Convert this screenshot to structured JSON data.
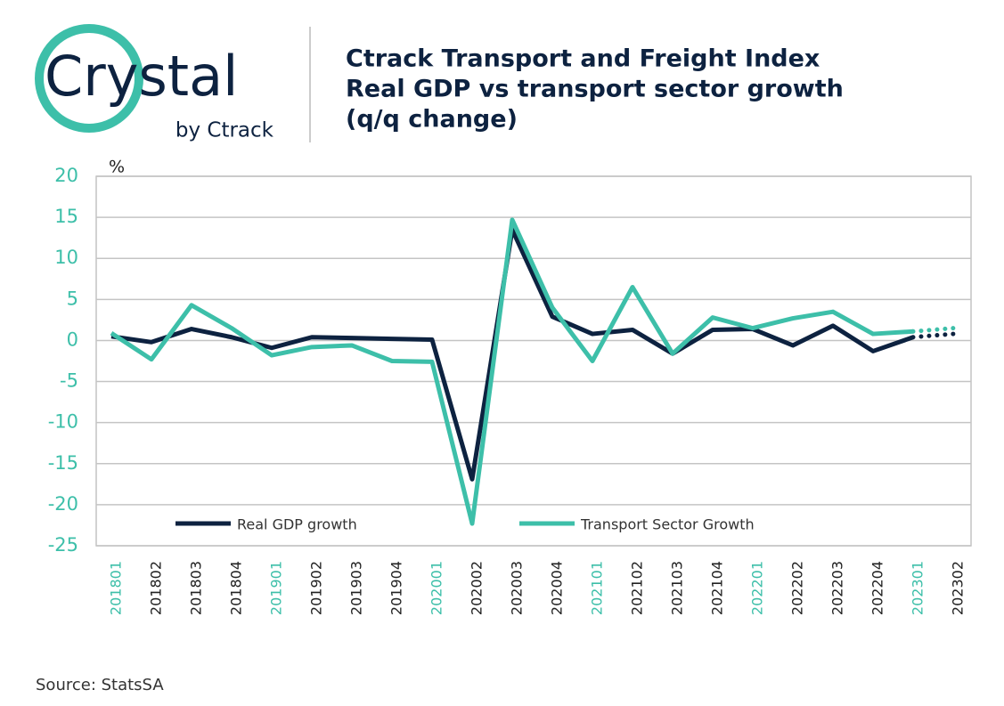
{
  "logo": {
    "name": "Crystal",
    "byline": "by Ctrack"
  },
  "chart_data": {
    "type": "line",
    "title": [
      "Ctrack Transport and Freight Index",
      "Real GDP vs transport sector growth",
      "(q/q change)"
    ],
    "y_unit": "%",
    "categories": [
      "201801",
      "201802",
      "201803",
      "201804",
      "201901",
      "201902",
      "201903",
      "201904",
      "202001",
      "202002",
      "202003",
      "202004",
      "202101",
      "202102",
      "202103",
      "202104",
      "202201",
      "202202",
      "202203",
      "202204",
      "202301",
      "202302"
    ],
    "series": [
      {
        "name": "Real GDP growth",
        "color": "#0d2240",
        "values": [
          0.5,
          -0.2,
          1.4,
          0.4,
          -0.9,
          0.4,
          0.3,
          0.2,
          0.1,
          -16.9,
          13.5,
          2.9,
          0.8,
          1.3,
          -1.6,
          1.3,
          1.4,
          -0.6,
          1.8,
          -1.3,
          0.4,
          0.8
        ]
      },
      {
        "name": "Transport Sector Growth",
        "color": "#3dbfa9",
        "values": [
          0.9,
          -2.3,
          4.3,
          1.5,
          -1.8,
          -0.8,
          -0.6,
          -2.5,
          -2.6,
          -22.3,
          14.7,
          4.0,
          -2.5,
          6.5,
          -1.6,
          2.8,
          1.5,
          2.7,
          3.5,
          0.8,
          1.1,
          1.5
        ]
      }
    ],
    "dotted_last_segment": true,
    "ylim": [
      -25,
      20
    ],
    "yticks": [
      -25,
      -20,
      -15,
      -10,
      -5,
      0,
      5,
      10,
      15,
      20
    ],
    "grid": true,
    "x_label_color": "#222",
    "x_label_highlight_color": "#3dbfa9",
    "source": "Source: StatsSA"
  }
}
